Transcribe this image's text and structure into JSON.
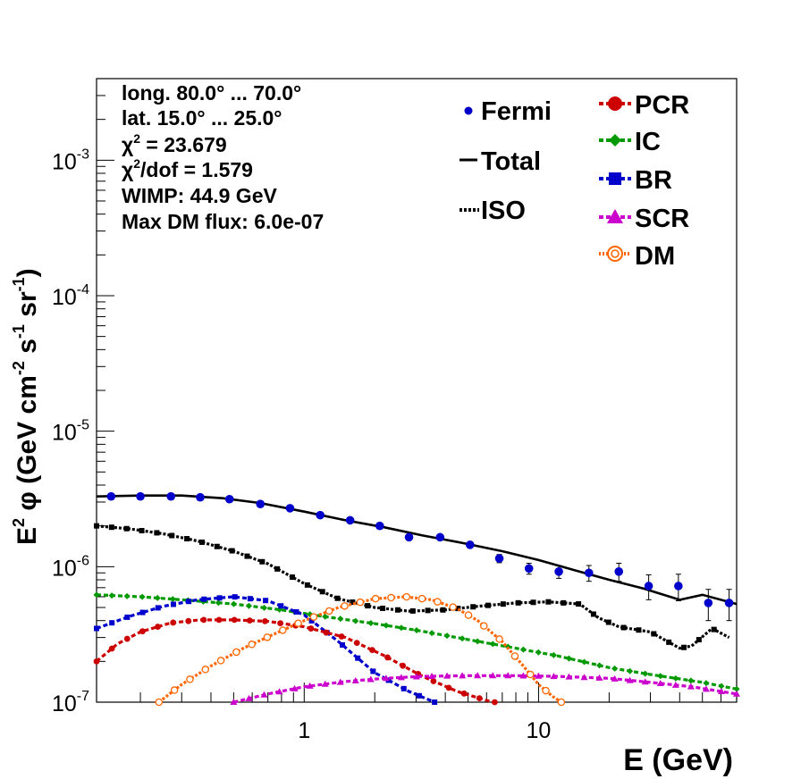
{
  "chart_data": {
    "type": "line",
    "xlabel": "E (GeV)",
    "ylabel_parts": [
      "E",
      "2",
      "φ (GeV cm",
      "-2",
      " s",
      "-1",
      " sr",
      "-1",
      ")"
    ],
    "xscale": "log",
    "yscale": "log",
    "xlim": [
      0.13,
      70
    ],
    "ylim": [
      1e-07,
      0.004
    ],
    "x_tick_labels": [
      {
        "value": 1,
        "label": "1"
      },
      {
        "value": 10,
        "label": "10"
      }
    ],
    "y_tick_labels": [
      {
        "value": 1e-07,
        "base": "10",
        "exp": "-7"
      },
      {
        "value": 1e-06,
        "base": "10",
        "exp": "-6"
      },
      {
        "value": 1e-05,
        "base": "10",
        "exp": "-5"
      },
      {
        "value": 0.0001,
        "base": "10",
        "exp": "-4"
      },
      {
        "value": 0.001,
        "base": "10",
        "exp": "-3"
      }
    ],
    "info_lines": [
      {
        "text": "long. 80.0° ... 70.0°"
      },
      {
        "text": "lat. 15.0° ... 25.0°"
      },
      {
        "pre": "χ",
        "sup": "2",
        "post": " = 23.679"
      },
      {
        "pre": "χ",
        "sup": "2",
        "post": "/dof = 1.579"
      },
      {
        "text": "WIMP: 44.9 GeV"
      },
      {
        "text": "Max DM flux: 6.0e-07"
      }
    ],
    "legend_left": [
      {
        "name": "Fermi",
        "style": "dot",
        "color": "#0000cc"
      },
      {
        "name": "Total",
        "style": "solid",
        "color": "#000000"
      },
      {
        "name": "ISO",
        "style": "dotted",
        "color": "#000000"
      }
    ],
    "legend_right": [
      {
        "name": "PCR",
        "style": "circle",
        "color": "#cc0000"
      },
      {
        "name": "IC",
        "style": "diamond",
        "color": "#009900"
      },
      {
        "name": "BR",
        "style": "square",
        "color": "#0000cc"
      },
      {
        "name": "SCR",
        "style": "triangle",
        "color": "#cc00cc"
      },
      {
        "name": "DM",
        "style": "open-circle",
        "color": "#ff6600"
      }
    ],
    "fermi": {
      "x": [
        0.15,
        0.2,
        0.27,
        0.36,
        0.48,
        0.65,
        0.87,
        1.17,
        1.57,
        2.1,
        2.8,
        3.8,
        5.1,
        6.8,
        9.1,
        12.2,
        16.4,
        22.0,
        29.5,
        39.5,
        53.0,
        65.0
      ],
      "y": [
        3.3e-06,
        3.3e-06,
        3.3e-06,
        3.25e-06,
        3.15e-06,
        2.9e-06,
        2.7e-06,
        2.4e-06,
        2.2e-06,
        2e-06,
        1.65e-06,
        1.65e-06,
        1.45e-06,
        1.15e-06,
        9.7e-07,
        9.2e-07,
        9e-07,
        9.2e-07,
        7.2e-07,
        7.2e-07,
        5.4e-07,
        5.4e-07
      ],
      "yerr": [
        5e-08,
        5e-08,
        5e-08,
        5e-08,
        5e-08,
        6e-08,
        6e-08,
        6e-08,
        6e-08,
        6e-08,
        6e-08,
        7e-08,
        7e-08,
        8e-08,
        9e-08,
        1e-07,
        1.2e-07,
        1.4e-07,
        1.5e-07,
        1.6e-07,
        1.4e-07,
        1.4e-07
      ]
    },
    "series": [
      {
        "name": "Total",
        "color": "#000000",
        "style": "solid",
        "x": [
          0.13,
          0.2,
          0.3,
          0.45,
          0.65,
          1.0,
          1.5,
          2.2,
          3.2,
          4.7,
          7.0,
          10.0,
          14.0,
          20.0,
          28.0,
          40.0,
          50.0,
          70.0
        ],
        "y": [
          3.3e-06,
          3.35e-06,
          3.35e-06,
          3.2e-06,
          2.95e-06,
          2.55e-06,
          2.2e-06,
          1.95e-06,
          1.7e-06,
          1.5e-06,
          1.3e-06,
          1.12e-06,
          9.5e-07,
          8e-07,
          6.9e-07,
          5.7e-07,
          6.2e-07,
          5.3e-07
        ]
      },
      {
        "name": "ISO",
        "color": "#000000",
        "style": "dotted",
        "marker": "square",
        "x": [
          0.13,
          0.18,
          0.25,
          0.35,
          0.5,
          0.7,
          1.0,
          1.4,
          2.0,
          2.8,
          4.0,
          5.5,
          8.0,
          11.0,
          15.0,
          18.0,
          22.0,
          30.0,
          40.0,
          45.0,
          55.0,
          65.0
        ],
        "y": [
          2e-06,
          1.9e-06,
          1.75e-06,
          1.55e-06,
          1.3e-06,
          1.05e-06,
          7.5e-07,
          5.8e-07,
          5e-07,
          4.7e-07,
          4.8e-07,
          5.1e-07,
          5.4e-07,
          5.5e-07,
          5.3e-07,
          4.2e-07,
          3.6e-07,
          3.3e-07,
          2.5e-07,
          2.6e-07,
          3.5e-07,
          3e-07
        ]
      },
      {
        "name": "IC",
        "color": "#009900",
        "style": "dashed",
        "marker": "diamond",
        "x": [
          0.13,
          0.2,
          0.3,
          0.5,
          0.8,
          1.2,
          2.0,
          3.0,
          5.0,
          8.0,
          12.0,
          20.0,
          30.0,
          50.0,
          70.0
        ],
        "y": [
          6.2e-07,
          6e-07,
          5.7e-07,
          5.3e-07,
          4.8e-07,
          4.3e-07,
          3.8e-07,
          3.4e-07,
          2.9e-07,
          2.5e-07,
          2.2e-07,
          1.8e-07,
          1.6e-07,
          1.4e-07,
          1.25e-07
        ]
      },
      {
        "name": "BR",
        "color": "#0000cc",
        "style": "dashed",
        "marker": "square",
        "x": [
          0.13,
          0.18,
          0.25,
          0.35,
          0.5,
          0.7,
          1.0,
          1.4,
          2.0,
          2.8,
          3.6
        ],
        "y": [
          3.5e-07,
          4.3e-07,
          5.1e-07,
          5.7e-07,
          6e-07,
          5.6e-07,
          4.4e-07,
          2.8e-07,
          1.65e-07,
          1.2e-07,
          1e-07
        ]
      },
      {
        "name": "PCR",
        "color": "#cc0000",
        "style": "dashed",
        "marker": "circle",
        "x": [
          0.13,
          0.16,
          0.2,
          0.27,
          0.36,
          0.5,
          0.7,
          1.0,
          1.5,
          2.2,
          3.2,
          4.5,
          6.0,
          6.5
        ],
        "y": [
          2e-07,
          2.7e-07,
          3.3e-07,
          3.85e-07,
          4.05e-07,
          4.05e-07,
          3.95e-07,
          3.6e-07,
          3e-07,
          2.2e-07,
          1.55e-07,
          1.2e-07,
          1.03e-07,
          1e-07
        ]
      },
      {
        "name": "SCR",
        "color": "#cc00cc",
        "style": "dashed",
        "marker": "triangle",
        "x": [
          0.5,
          0.7,
          1.0,
          1.5,
          2.2,
          3.2,
          5.0,
          8.0,
          12.0,
          20.0,
          30.0,
          45.0,
          70.0
        ],
        "y": [
          1e-07,
          1.15e-07,
          1.3e-07,
          1.42e-07,
          1.5e-07,
          1.55e-07,
          1.57e-07,
          1.57e-07,
          1.55e-07,
          1.5e-07,
          1.4e-07,
          1.3e-07,
          1.15e-07
        ]
      },
      {
        "name": "DM",
        "color": "#ff6600",
        "style": "dotted",
        "marker": "open-circle",
        "x": [
          0.24,
          0.3,
          0.4,
          0.55,
          0.75,
          1.0,
          1.4,
          2.0,
          2.7,
          3.5,
          4.5,
          5.5,
          7.0,
          8.5,
          10.0,
          11.5,
          12.5
        ],
        "y": [
          1e-07,
          1.35e-07,
          1.85e-07,
          2.5e-07,
          3.2e-07,
          4e-07,
          5e-07,
          5.8e-07,
          6e-07,
          5.7e-07,
          4.9e-07,
          4e-07,
          2.8e-07,
          1.9e-07,
          1.35e-07,
          1.1e-07,
          1e-07
        ]
      }
    ]
  }
}
